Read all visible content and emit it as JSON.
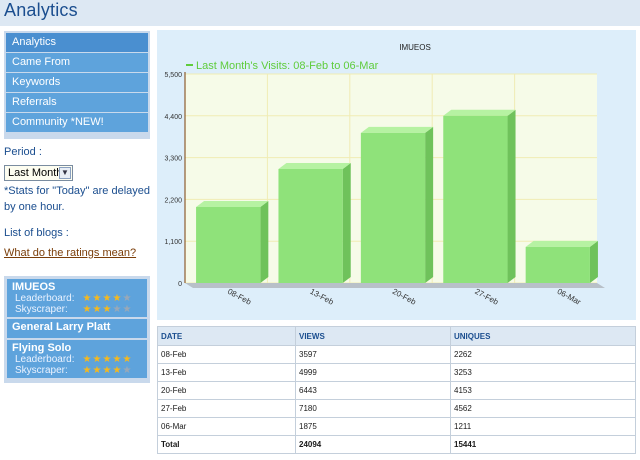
{
  "app": {
    "title": "Analytics"
  },
  "nav": {
    "items": [
      {
        "label": "Analytics"
      },
      {
        "label": "Came From"
      },
      {
        "label": "Keywords"
      },
      {
        "label": "Referrals"
      },
      {
        "label": "Community *NEW!"
      }
    ]
  },
  "period": {
    "label": "Period :",
    "selected": "Last Month",
    "note": "*Stats for \"Today\" are delayed by one hour."
  },
  "blogs": {
    "label": "List of blogs :",
    "ratings_link": "What do the ratings mean?",
    "items": [
      {
        "name": "IMUEOS",
        "leaderboard_label": "Leaderboard:",
        "skyscraper_label": "Skyscraper:",
        "leaderboard_stars": 3.5,
        "skyscraper_stars": 3
      },
      {
        "name": "General Larry Platt"
      },
      {
        "name": "Flying Solo",
        "leaderboard_label": "Leaderboard:",
        "skyscraper_label": "Skyscraper:",
        "leaderboard_stars": 5,
        "skyscraper_stars": 4
      }
    ]
  },
  "chart_data": {
    "type": "bar",
    "title": "IMUEOS",
    "legend": "Last Month's Visits: 08-Feb to 06-Mar",
    "categories": [
      "08-Feb",
      "13-Feb",
      "20-Feb",
      "27-Feb",
      "06-Mar"
    ],
    "series": [
      {
        "name": "Last Month's Visits: 08-Feb to 06-Mar",
        "values": [
          2000,
          3000,
          3950,
          4400,
          950
        ]
      }
    ],
    "yticks": [
      "0",
      "1,100",
      "2,200",
      "3,300",
      "4,400",
      "5,500"
    ],
    "ylim": [
      0,
      5500
    ],
    "grid": true,
    "legend_position": "top-left",
    "colors": {
      "bar": "#8fe27a",
      "bar_top": "#b6f2a2",
      "bar_side": "#6fc25b",
      "legend_text": "#5fcc3c",
      "panel_bg": "#ddeefa",
      "grid": "#f0ecb4"
    }
  },
  "table": {
    "headers": [
      "DATE",
      "VIEWS",
      "UNIQUES"
    ],
    "rows": [
      [
        "08-Feb",
        "3597",
        "2262"
      ],
      [
        "13-Feb",
        "4999",
        "3253"
      ],
      [
        "20-Feb",
        "6443",
        "4153"
      ],
      [
        "27-Feb",
        "7180",
        "4562"
      ],
      [
        "06-Mar",
        "1875",
        "1211"
      ]
    ],
    "total": [
      "Total",
      "24094",
      "15441"
    ]
  }
}
